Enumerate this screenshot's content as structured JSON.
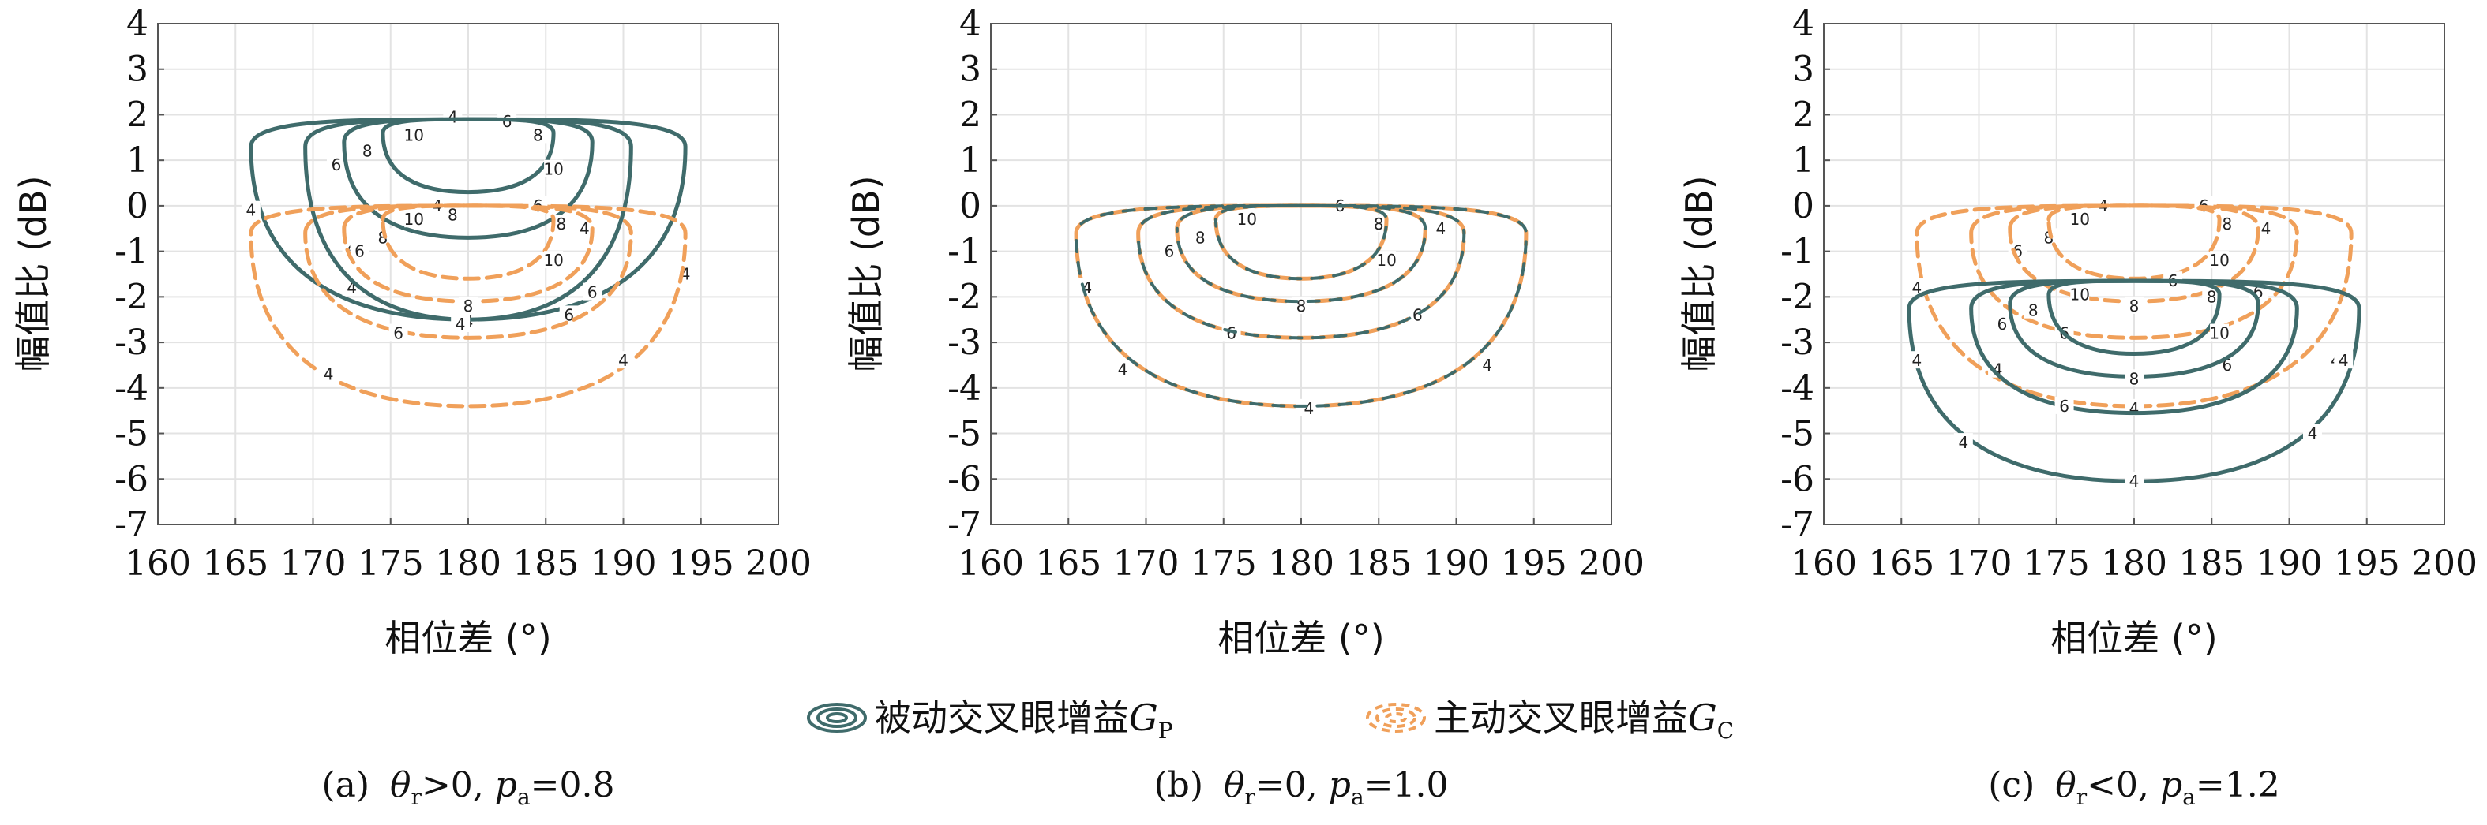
{
  "colors": {
    "passive": "#3f6b6b",
    "active": "#f0a05a",
    "grid": "#e3e3e3",
    "frame": "#555555"
  },
  "legend": {
    "passive_label": "被动交叉眼增益",
    "passive_symbol": "G",
    "passive_sub": "P",
    "active_label": "主动交叉眼增益",
    "active_symbol": "G",
    "active_sub": "C"
  },
  "chart_data": [
    {
      "type": "contour",
      "caption": {
        "letter": "(a)",
        "theta_relation": ">0",
        "pa_value": "=0.8"
      },
      "xlabel": "相位差 (°)",
      "ylabel": "幅值比 (dB)",
      "xlim": [
        160,
        200
      ],
      "ylim": [
        -7,
        4
      ],
      "xticks": [
        "160",
        "165",
        "170",
        "175",
        "180",
        "185",
        "190",
        "195",
        "200"
      ],
      "yticks": [
        "4",
        "3",
        "2",
        "1",
        "0",
        "-1",
        "-2",
        "-3",
        "-4",
        "-5",
        "-6",
        "-7"
      ],
      "grid": true,
      "series": [
        {
          "key": "passive",
          "style": "solid",
          "levels": [
            {
              "level": "4",
              "cx": 180,
              "top": 1.9,
              "rx": 14,
              "ry_up": 0.6,
              "ry_down": 4.4,
              "labels": [
                [
                  166,
                  -0.1
                ],
                [
                  179,
                  1.95
                ],
                [
                  172.5,
                  -1.8
                ],
                [
                  180,
                  -2.55
                ],
                [
                  188,
                  -1.9
                ],
                [
                  194,
                  -1.5
                ]
              ]
            },
            {
              "level": "6",
              "cx": 180,
              "top": 1.9,
              "rx": 10.5,
              "ry_up": 0.6,
              "ry_down": 4.4,
              "labels": [
                [
                  171.5,
                  0.9
                ],
                [
                  182.5,
                  1.85
                ],
                [
                  172.5,
                  -1.0
                ],
                [
                  186.5,
                  -2.4
                ]
              ]
            },
            {
              "level": "8",
              "cx": 180,
              "top": 1.9,
              "rx": 8,
              "ry_up": 0.5,
              "ry_down": 2.6,
              "labels": [
                [
                  173.5,
                  1.2
                ],
                [
                  184.5,
                  1.55
                ],
                [
                  179,
                  -0.2
                ]
              ]
            },
            {
              "level": "10",
              "cx": 180,
              "top": 1.9,
              "rx": 5.5,
              "ry_up": 0.3,
              "ry_down": 1.6,
              "labels": [
                [
                  176.5,
                  1.55
                ],
                [
                  185.5,
                  0.8
                ]
              ]
            }
          ]
        },
        {
          "key": "active",
          "style": "dashed",
          "levels": [
            {
              "level": "4",
              "cx": 180,
              "top": 0.0,
              "rx": 14,
              "ry_up": 0.6,
              "ry_down": 4.4,
              "labels": [
                [
                  178,
                  0.0
                ],
                [
                  187.5,
                  -0.5
                ],
                [
                  179.5,
                  -2.6
                ],
                [
                  190,
                  -3.4
                ],
                [
                  171,
                  -3.7
                ]
              ]
            },
            {
              "level": "6",
              "cx": 180,
              "top": 0.0,
              "rx": 10.5,
              "ry_up": 0.6,
              "ry_down": 2.9,
              "labels": [
                [
                  173,
                  -1.0
                ],
                [
                  184.5,
                  0.0
                ],
                [
                  175.5,
                  -2.8
                ],
                [
                  188,
                  -1.9
                ]
              ]
            },
            {
              "level": "8",
              "cx": 180,
              "top": 0.0,
              "rx": 8,
              "ry_up": 0.5,
              "ry_down": 2.1,
              "labels": [
                [
                  174.5,
                  -0.7
                ],
                [
                  186,
                  -0.4
                ],
                [
                  180,
                  -2.2
                ]
              ]
            },
            {
              "level": "10",
              "cx": 180,
              "top": 0.0,
              "rx": 5.5,
              "ry_up": 0.3,
              "ry_down": 1.6,
              "labels": [
                [
                  176.5,
                  -0.3
                ],
                [
                  185.5,
                  -1.2
                ]
              ]
            }
          ]
        }
      ]
    },
    {
      "type": "contour",
      "caption": {
        "letter": "(b)",
        "theta_relation": "=0",
        "pa_value": "=1.0"
      },
      "xlabel": "相位差 (°)",
      "ylabel": "幅值比 (dB)",
      "xlim": [
        160,
        200
      ],
      "ylim": [
        -7,
        4
      ],
      "xticks": [
        "160",
        "165",
        "170",
        "175",
        "180",
        "185",
        "190",
        "195",
        "200"
      ],
      "yticks": [
        "4",
        "3",
        "2",
        "1",
        "0",
        "-1",
        "-2",
        "-3",
        "-4",
        "-5",
        "-6",
        "-7"
      ],
      "grid": true,
      "series": [
        {
          "key": "active",
          "style": "dashed",
          "levels": [
            {
              "level": "4",
              "cx": 180,
              "top": 0.0,
              "rx": 14.5,
              "ry_up": 0.6,
              "ry_down": 4.4,
              "labels": [
                [
                  166.2,
                  -1.8
                ],
                [
                  168.5,
                  -3.6
                ],
                [
                  180.5,
                  -4.45
                ],
                [
                  192,
                  -3.5
                ],
                [
                  189,
                  -0.5
                ]
              ]
            },
            {
              "level": "6",
              "cx": 180,
              "top": 0.0,
              "rx": 10.5,
              "ry_up": 0.6,
              "ry_down": 2.9,
              "labels": [
                [
                  171.5,
                  -1.0
                ],
                [
                  182.5,
                  0.0
                ],
                [
                  175.5,
                  -2.8
                ],
                [
                  187.5,
                  -2.4
                ]
              ]
            },
            {
              "level": "8",
              "cx": 180,
              "top": 0.0,
              "rx": 8,
              "ry_up": 0.5,
              "ry_down": 2.1,
              "labels": [
                [
                  173.5,
                  -0.7
                ],
                [
                  185,
                  -0.4
                ],
                [
                  180,
                  -2.2
                ]
              ]
            },
            {
              "level": "10",
              "cx": 180,
              "top": 0.0,
              "rx": 5.5,
              "ry_up": 0.3,
              "ry_down": 1.6,
              "labels": [
                [
                  176.5,
                  -0.3
                ],
                [
                  185.5,
                  -1.2
                ]
              ]
            }
          ]
        },
        {
          "key": "passive",
          "style": "solid-overlay",
          "levels": [
            {
              "level": "4",
              "cx": 180,
              "top": 0.0,
              "rx": 14.5,
              "ry_up": 0.6,
              "ry_down": 4.4,
              "labels": []
            },
            {
              "level": "6",
              "cx": 180,
              "top": 0.0,
              "rx": 10.5,
              "ry_up": 0.6,
              "ry_down": 2.9,
              "labels": []
            },
            {
              "level": "8",
              "cx": 180,
              "top": 0.0,
              "rx": 8,
              "ry_up": 0.5,
              "ry_down": 2.1,
              "labels": []
            },
            {
              "level": "10",
              "cx": 180,
              "top": 0.0,
              "rx": 5.5,
              "ry_up": 0.3,
              "ry_down": 1.6,
              "labels": []
            }
          ]
        }
      ]
    },
    {
      "type": "contour",
      "caption": {
        "letter": "(c)",
        "theta_relation": "<0",
        "pa_value": "=1.2"
      },
      "xlabel": "相位差 (°)",
      "ylabel": "幅值比 (dB)",
      "xlim": [
        160,
        200
      ],
      "ylim": [
        -7,
        4
      ],
      "xticks": [
        "160",
        "165",
        "170",
        "175",
        "180",
        "185",
        "190",
        "195",
        "200"
      ],
      "yticks": [
        "4",
        "3",
        "2",
        "1",
        "0",
        "-1",
        "-2",
        "-3",
        "-4",
        "-5",
        "-6",
        "-7"
      ],
      "grid": true,
      "series": [
        {
          "key": "active",
          "style": "dashed",
          "levels": [
            {
              "level": "4",
              "cx": 180,
              "top": 0.0,
              "rx": 14,
              "ry_up": 0.6,
              "ry_down": 4.4,
              "labels": [
                [
                  166,
                  -1.8
                ],
                [
                  171.2,
                  -3.6
                ],
                [
                  178,
                  0.0
                ],
                [
                  188.5,
                  -0.5
                ],
                [
                  193,
                  -3.4
                ],
                [
                  180,
                  -4.45
                ]
              ]
            },
            {
              "level": "6",
              "cx": 180,
              "top": 0.0,
              "rx": 10.5,
              "ry_up": 0.6,
              "ry_down": 2.9,
              "labels": [
                [
                  172.5,
                  -1.0
                ],
                [
                  184.5,
                  0.0
                ],
                [
                  175.5,
                  -2.8
                ],
                [
                  188,
                  -1.9
                ]
              ]
            },
            {
              "level": "8",
              "cx": 180,
              "top": 0.0,
              "rx": 8,
              "ry_up": 0.5,
              "ry_down": 2.1,
              "labels": [
                [
                  174.5,
                  -0.7
                ],
                [
                  186,
                  -0.4
                ],
                [
                  180,
                  -2.2
                ]
              ]
            },
            {
              "level": "10",
              "cx": 180,
              "top": 0.0,
              "rx": 5.5,
              "ry_up": 0.3,
              "ry_down": 1.6,
              "labels": [
                [
                  176.5,
                  -0.3
                ],
                [
                  185.5,
                  -1.2
                ]
              ]
            }
          ]
        },
        {
          "key": "passive",
          "style": "solid",
          "levels": [
            {
              "level": "4",
              "cx": 180,
              "top": -1.65,
              "rx": 14.5,
              "ry_up": 0.6,
              "ry_down": 4.4,
              "labels": [
                [
                  166,
                  -3.4
                ],
                [
                  169,
                  -5.2
                ],
                [
                  180,
                  -6.05
                ],
                [
                  193.5,
                  -3.4
                ],
                [
                  191.5,
                  -5.0
                ]
              ]
            },
            {
              "level": "6",
              "cx": 180,
              "top": -1.65,
              "rx": 10.5,
              "ry_up": 0.6,
              "ry_down": 2.9,
              "labels": [
                [
                  171.5,
                  -2.6
                ],
                [
                  182.5,
                  -1.65
                ],
                [
                  175.5,
                  -4.4
                ],
                [
                  186,
                  -3.5
                ]
              ]
            },
            {
              "level": "8",
              "cx": 180,
              "top": -1.65,
              "rx": 8,
              "ry_up": 0.5,
              "ry_down": 2.1,
              "labels": [
                [
                  173.5,
                  -2.3
                ],
                [
                  185,
                  -2.0
                ],
                [
                  180,
                  -3.8
                ]
              ]
            },
            {
              "level": "10",
              "cx": 180,
              "top": -1.65,
              "rx": 5.5,
              "ry_up": 0.3,
              "ry_down": 1.6,
              "labels": [
                [
                  176.5,
                  -1.95
                ],
                [
                  185.5,
                  -2.8
                ]
              ]
            }
          ]
        }
      ]
    }
  ]
}
